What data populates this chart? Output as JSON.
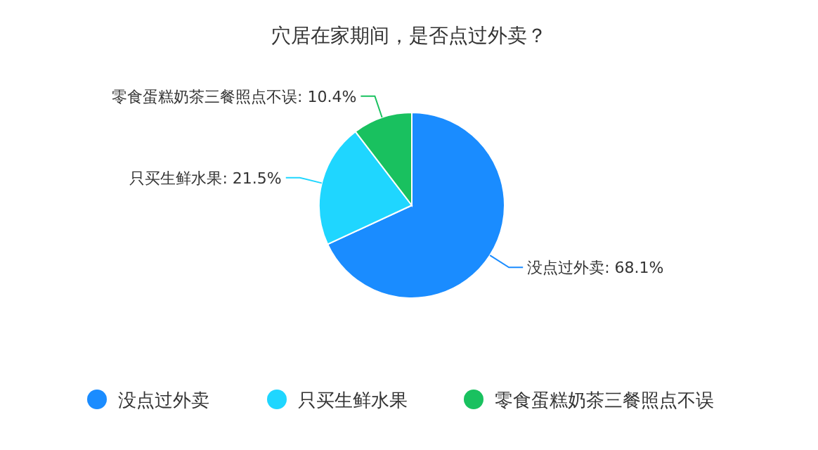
{
  "chart_data": {
    "type": "pie",
    "title": "穴居在家期间，是否点过外卖？",
    "categories": [
      "没点过外卖",
      "只买生鲜水果",
      "零食蛋糕奶茶三餐照点不误"
    ],
    "values": [
      68.1,
      21.5,
      10.4
    ],
    "value_labels": [
      ": 68.1%",
      ": 21.5%",
      ": 10.4%"
    ],
    "colors": [
      "#1a8cff",
      "#1fd6ff",
      "#19c15f"
    ],
    "legend": "bottom"
  }
}
